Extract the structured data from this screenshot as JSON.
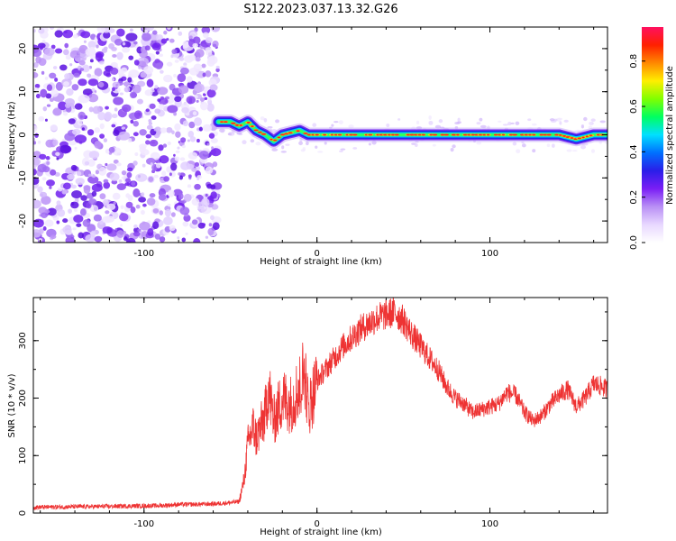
{
  "title": "S122.2023.037.13.32.G26",
  "colors": {
    "snr_line": "#ee3333",
    "frame": "#000000"
  },
  "chart_data": [
    {
      "type": "heatmap",
      "name": "spectrogram",
      "xlabel": "Height of straight line (km)",
      "ylabel": "Frequency (Hz)",
      "xlim": [
        -164,
        168
      ],
      "ylim": [
        -25,
        25
      ],
      "xticks": [
        -100,
        0,
        100
      ],
      "yticks": [
        -20,
        -10,
        0,
        10,
        20
      ],
      "noise_region_x": [
        -164,
        -57
      ],
      "signal_start_x": -57,
      "signal_track": {
        "x": [
          -57,
          -50,
          -45,
          -40,
          -35,
          -30,
          -25,
          -20,
          -15,
          -10,
          -5,
          0,
          20,
          60,
          100,
          140,
          150,
          160,
          168
        ],
        "y": [
          3,
          3,
          2,
          3,
          1,
          0,
          -1.5,
          0,
          0.5,
          1,
          0,
          0,
          0,
          0,
          0,
          0,
          -1,
          0,
          0
        ]
      },
      "colorbar": {
        "label": "Normalized spectral amplitude",
        "range": [
          0,
          0.95
        ],
        "ticks": [
          0.0,
          0.2,
          0.4,
          0.6,
          0.8
        ],
        "colormap": [
          "#ffffff",
          "#e8d8ff",
          "#b98ff5",
          "#7a1ef5",
          "#2a1ee8",
          "#0070ff",
          "#00e0ff",
          "#00ff60",
          "#80ff00",
          "#ffee00",
          "#ff8800",
          "#ff2000",
          "#ff1060"
        ]
      }
    },
    {
      "type": "line",
      "name": "snr",
      "xlabel": "Height of straight line (km)",
      "ylabel": "SNR (10 * v/v)",
      "xlim": [
        -164,
        168
      ],
      "ylim": [
        0,
        375
      ],
      "xticks": [
        -100,
        0,
        100
      ],
      "yticks": [
        0,
        100,
        200,
        300
      ],
      "series": [
        {
          "x": [
            -164,
            -140,
            -110,
            -90,
            -80,
            -70,
            -60,
            -50,
            -45,
            -42,
            -40,
            -37,
            -35,
            -30,
            -28,
            -25,
            -20,
            -15,
            -10,
            -7,
            -5,
            -3,
            0,
            5,
            10,
            15,
            20,
            25,
            30,
            35,
            40,
            45,
            50,
            55,
            60,
            65,
            70,
            75,
            80,
            85,
            90,
            95,
            100,
            105,
            110,
            115,
            120,
            125,
            130,
            135,
            140,
            145,
            150,
            155,
            160,
            165,
            168
          ],
          "y": [
            10,
            11,
            12,
            13,
            15,
            15,
            16,
            18,
            20,
            60,
            120,
            150,
            130,
            170,
            220,
            160,
            200,
            190,
            220,
            250,
            180,
            200,
            230,
            250,
            270,
            290,
            305,
            320,
            330,
            340,
            345,
            350,
            335,
            310,
            290,
            270,
            250,
            220,
            200,
            190,
            175,
            180,
            185,
            190,
            210,
            205,
            175,
            160,
            170,
            190,
            205,
            215,
            185,
            200,
            225,
            220,
            215
          ]
        }
      ]
    }
  ]
}
